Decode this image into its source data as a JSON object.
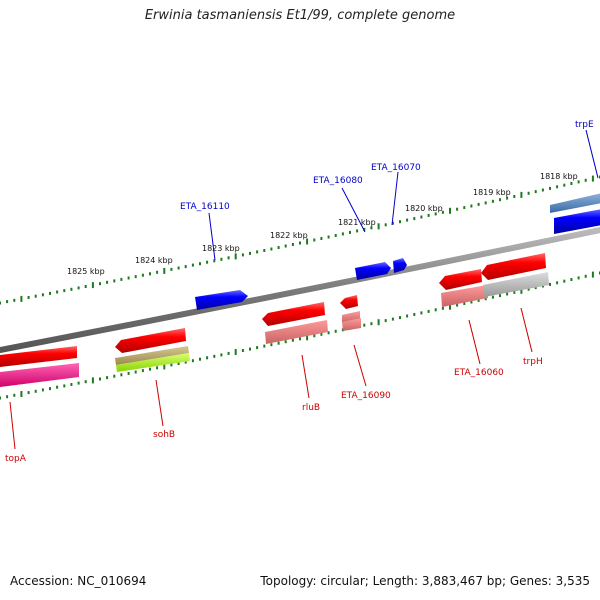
{
  "title": "Erwinia tasmaniensis Et1/99, complete genome",
  "footer": {
    "accession_label": "Accession:",
    "accession": "NC_010694",
    "summary": "Topology: circular; Length: 3,883,467 bp; Genes: 3,535"
  },
  "colors": {
    "backbone": "#8a8a8a",
    "tick": "#1f7a1f",
    "forward": "#0000ee",
    "reverse": "#ee0000",
    "forward_label": "#0000cc",
    "reverse_label": "#cc0000"
  },
  "scale_labels": [
    "1818 kbp",
    "1819 kbp",
    "1820 kbp",
    "1821 kbp",
    "1822 kbp",
    "1823 kbp",
    "1824 kbp",
    "1825 kbp"
  ],
  "forward_gene_labels": [
    "trpE",
    "ETA_16070",
    "ETA_16080",
    "ETA_16110"
  ],
  "reverse_gene_labels": [
    "topA",
    "sohB",
    "rluB",
    "ETA_16090",
    "ETA_16060",
    "trpH"
  ]
}
